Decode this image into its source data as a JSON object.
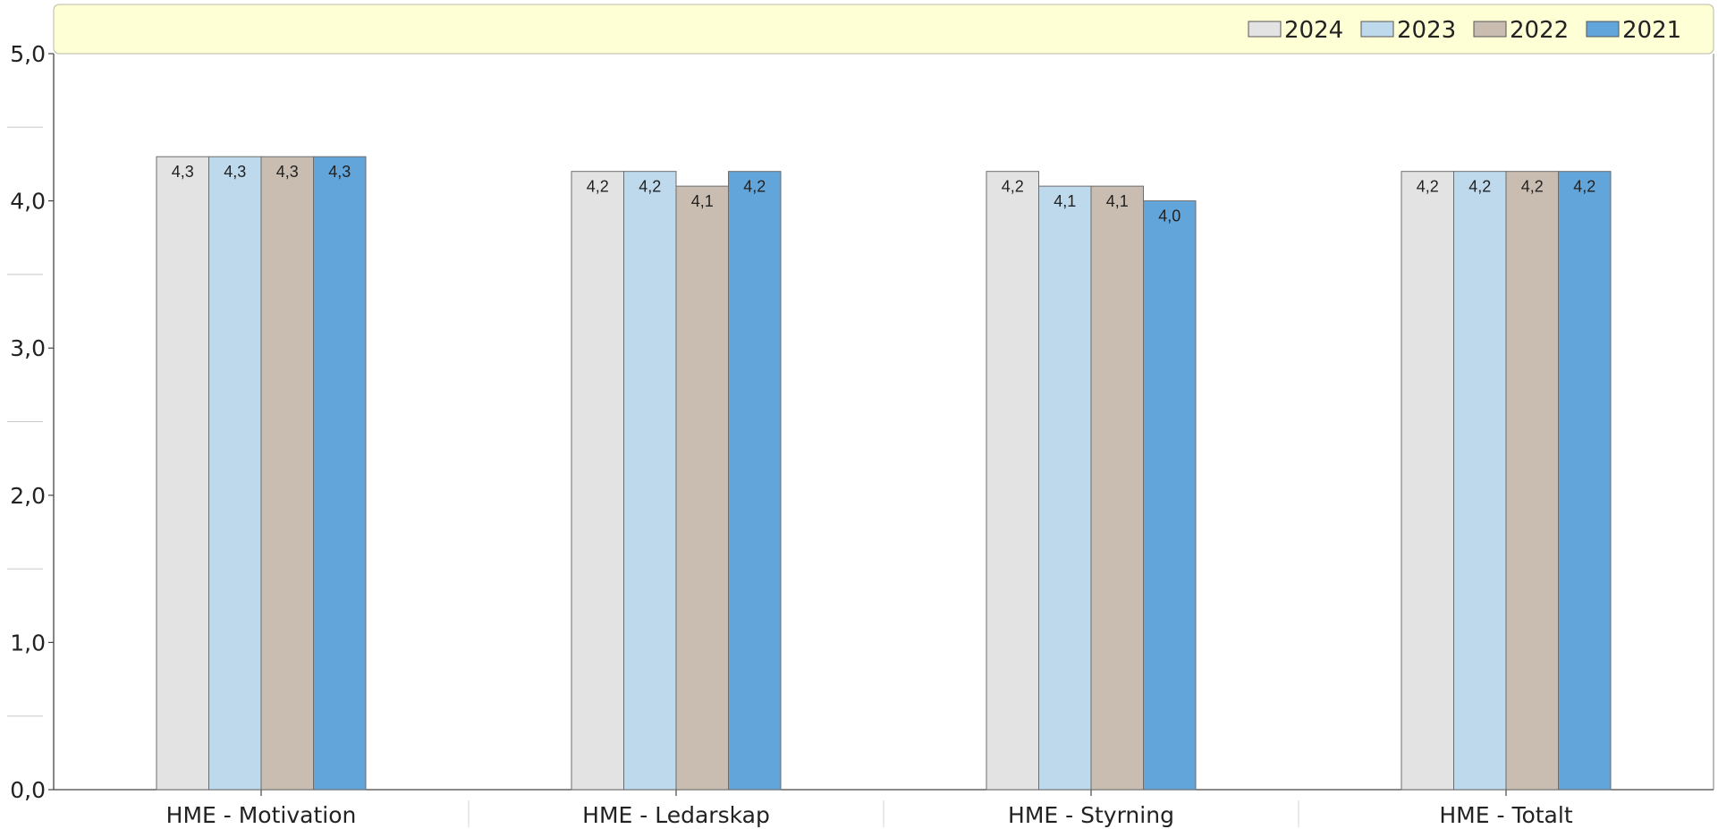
{
  "chart_data": {
    "type": "bar",
    "categories": [
      "HME - Motivation",
      "HME - Ledarskap",
      "HME - Styrning",
      "HME - Totalt"
    ],
    "series": [
      {
        "name": "2024",
        "values": [
          4.3,
          4.2,
          4.2,
          4.2
        ],
        "labels": [
          "4,3",
          "4,2",
          "4,2",
          "4,2"
        ],
        "color": "#e3e3e3"
      },
      {
        "name": "2023",
        "values": [
          4.3,
          4.2,
          4.1,
          4.2
        ],
        "labels": [
          "4,3",
          "4,2",
          "4,1",
          "4,2"
        ],
        "color": "#bed9ec"
      },
      {
        "name": "2022",
        "values": [
          4.3,
          4.1,
          4.1,
          4.2
        ],
        "labels": [
          "4,3",
          "4,1",
          "4,1",
          "4,2"
        ],
        "color": "#c9bdb2"
      },
      {
        "name": "2021",
        "values": [
          4.3,
          4.2,
          4.0,
          4.2
        ],
        "labels": [
          "4,3",
          "4,2",
          "4,0",
          "4,2"
        ],
        "color": "#62a5da"
      }
    ],
    "ylim": [
      0,
      5
    ],
    "yticks": [
      0,
      1,
      2,
      3,
      4,
      5
    ],
    "ytick_labels": [
      "0,0",
      "1,0",
      "2,0",
      "3,0",
      "4,0",
      "5,0"
    ],
    "legend_position": "top-right",
    "legend_band_color": "#ffffd6",
    "grid": false
  }
}
